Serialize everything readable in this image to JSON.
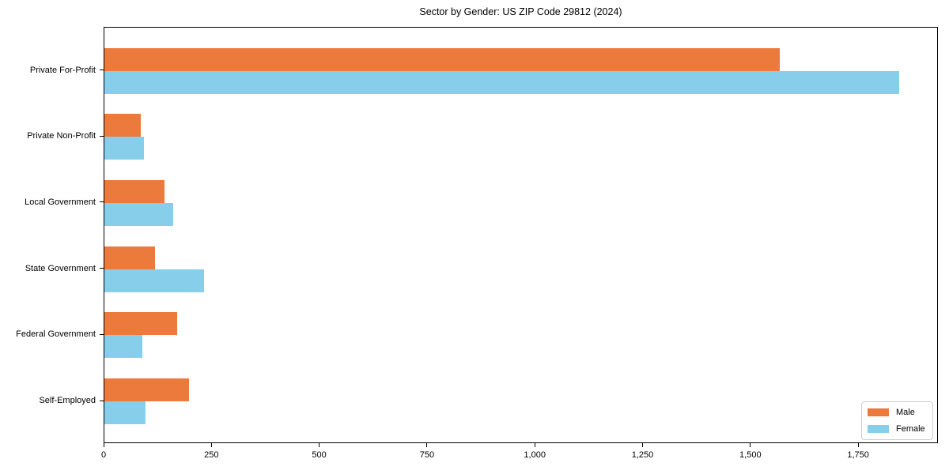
{
  "chart_data": {
    "type": "bar",
    "orientation": "horizontal",
    "title": "Sector by Gender: US ZIP Code 29812 (2024)",
    "xlabel": "",
    "ylabel": "",
    "categories": [
      "Private For-Profit",
      "Private Non-Profit",
      "Local Government",
      "State Government",
      "Federal Government",
      "Self-Employed"
    ],
    "series": [
      {
        "name": "Male",
        "color": "#EC7A3C",
        "values": [
          1567,
          84,
          139,
          117,
          169,
          197
        ]
      },
      {
        "name": "Female",
        "color": "#87CEEB",
        "values": [
          1843,
          92,
          159,
          231,
          88,
          95
        ]
      }
    ],
    "xlim": [
      0,
      1935
    ],
    "xticks": [
      0,
      250,
      500,
      750,
      1000,
      1250,
      1500,
      1750
    ],
    "xtick_labels": [
      "0",
      "250",
      "500",
      "750",
      "1,000",
      "1,250",
      "1,500",
      "1,750"
    ],
    "grid": false,
    "legend": {
      "position": "lower right",
      "items": [
        "Male",
        "Female"
      ]
    },
    "colors": {
      "background": "#ffffff",
      "axis": "#000000",
      "legend_border": "#cfcfcf"
    }
  }
}
